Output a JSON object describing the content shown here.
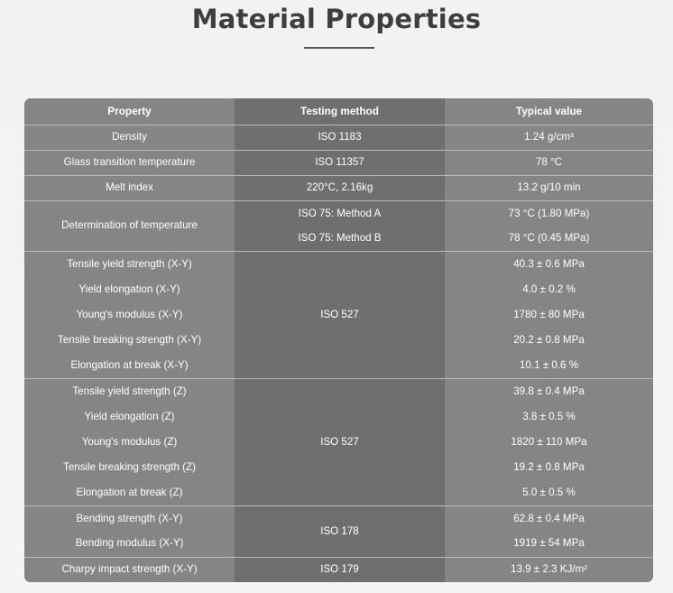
{
  "page": {
    "title": "Material Properties"
  },
  "table": {
    "headers": [
      "Property",
      "Testing method",
      "Typical value"
    ],
    "groups": [
      {
        "method": "ISO 1183",
        "rows": [
          {
            "property": "Density",
            "method": "ISO 1183",
            "value": "1.24 g/cm³"
          }
        ]
      },
      {
        "method": "ISO 11357",
        "rows": [
          {
            "property": "Glass transition temperature",
            "method": "ISO 11357",
            "value": "78 °C"
          }
        ]
      },
      {
        "method": "220°C, 2.16kg",
        "rows": [
          {
            "property": "Melt index",
            "method": "220°C, 2.16kg",
            "value": "13.2 g/10 min"
          }
        ]
      },
      {
        "property": "Determination of temperature",
        "rows": [
          {
            "method": "ISO 75: Method A",
            "value": "73 °C (1.80 MPa)"
          },
          {
            "method": "ISO 75: Method B",
            "value": "78 °C (0.45 MPa)"
          }
        ]
      },
      {
        "method": "ISO 527",
        "rows": [
          {
            "property": "Tensile yield strength (X-Y)",
            "value": "40.3 ± 0.6 MPa"
          },
          {
            "property": "Yield elongation (X-Y)",
            "value": "4.0 ± 0.2 %"
          },
          {
            "property": "Young's modulus (X-Y)",
            "value": "1780 ± 80 MPa"
          },
          {
            "property": "Tensile breaking strength (X-Y)",
            "value": "20.2 ± 0.8 MPa"
          },
          {
            "property": "Elongation at break (X-Y)",
            "value": "10.1 ± 0.6 %"
          }
        ]
      },
      {
        "method": "ISO 527",
        "rows": [
          {
            "property": "Tensile yield strength (Z)",
            "value": "39.8 ± 0.4 MPa"
          },
          {
            "property": "Yield elongation (Z)",
            "value": "3.8 ± 0.5 %"
          },
          {
            "property": "Young's modulus (Z)",
            "value": "1820 ± 110 MPa"
          },
          {
            "property": "Tensile breaking strength (Z)",
            "value": "19.2 ± 0.8 MPa"
          },
          {
            "property": "Elongation at break (Z)",
            "value": "5.0 ± 0.5 %"
          }
        ]
      },
      {
        "method": "ISO 178",
        "rows": [
          {
            "property": "Bending strength (X-Y)",
            "value": "62.8 ± 0.4 MPa"
          },
          {
            "property": "Bending modulus (X-Y)",
            "value": "1919 ± 54 MPa"
          }
        ]
      },
      {
        "method": "ISO 179",
        "rows": [
          {
            "property": "Charpy impact strength (X-Y)",
            "method": "ISO 179",
            "value": "13.9 ± 2.3 KJ/m²"
          }
        ]
      }
    ]
  },
  "colors": {
    "background": "#f2f3f5",
    "title": "#3e3e3e",
    "cell_light": "#858587",
    "cell_dark": "#6f6f71",
    "separator": "#b9b9bb",
    "text": "#ffffff"
  }
}
